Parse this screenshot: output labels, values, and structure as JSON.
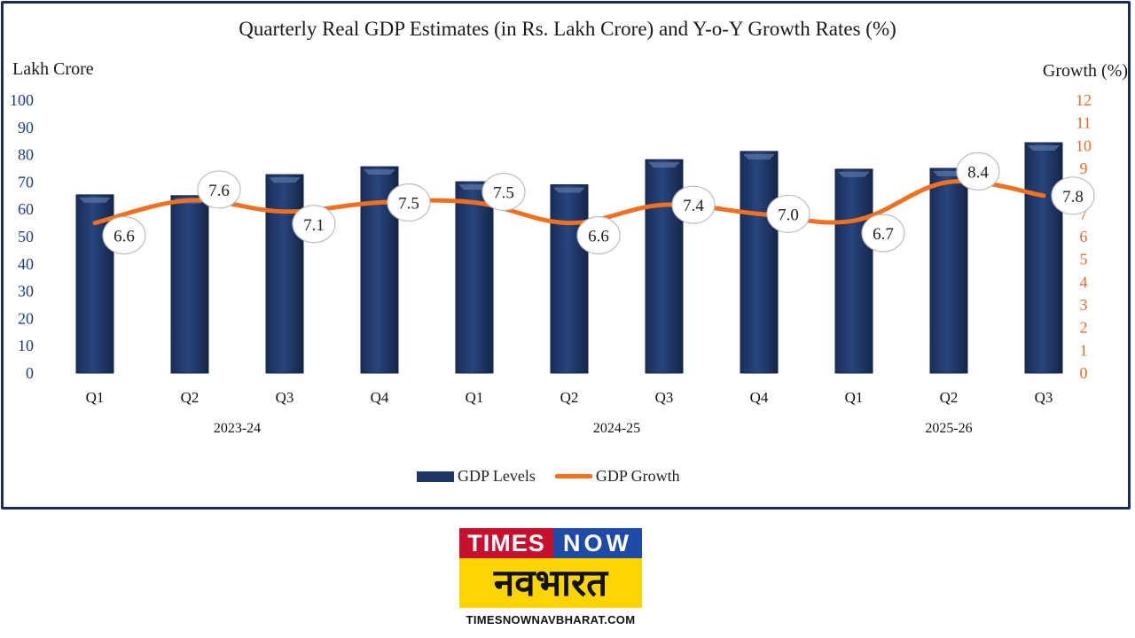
{
  "chart_data": {
    "type": "bar",
    "title": "Quarterly Real GDP Estimates (in Rs. Lakh Crore) and Y-o-Y Growth Rates (%)",
    "ylabel": "Lakh Crore",
    "y2label": "Growth (%)",
    "xlabel": "",
    "ylim": [
      0,
      100
    ],
    "y2lim": [
      0,
      12
    ],
    "yticks": [
      "0",
      "10",
      "20",
      "30",
      "40",
      "50",
      "60",
      "70",
      "80",
      "90",
      "100"
    ],
    "y2ticks": [
      "0",
      "1",
      "2",
      "3",
      "4",
      "5",
      "6",
      "7",
      "8",
      "9",
      "10",
      "11",
      "12"
    ],
    "categories": [
      "Q1",
      "Q2",
      "Q3",
      "Q4",
      "Q1",
      "Q2",
      "Q3",
      "Q4",
      "Q1",
      "Q2",
      "Q3"
    ],
    "groups": [
      {
        "label": "2023-24",
        "span": [
          0,
          3
        ]
      },
      {
        "label": "2024-25",
        "span": [
          4,
          7
        ]
      },
      {
        "label": "2025-26",
        "span": [
          8,
          10
        ]
      }
    ],
    "series": [
      {
        "name": "GDP Levels",
        "type": "bar",
        "axis": "left",
        "color": "#1f3565",
        "values": [
          65.3,
          65.0,
          72.7,
          75.6,
          70.1,
          69.0,
          78.2,
          81.2,
          74.7,
          75.0,
          84.4
        ]
      },
      {
        "name": "GDP Growth",
        "type": "line",
        "axis": "right",
        "color": "#f07020",
        "values": [
          6.6,
          7.6,
          7.1,
          7.5,
          7.5,
          6.6,
          7.4,
          7.0,
          6.7,
          8.4,
          7.8
        ],
        "labels": [
          "6.6",
          "7.6",
          "7.1",
          "7.5",
          "7.5",
          "6.6",
          "7.4",
          "7.0",
          "6.7",
          "8.4",
          "7.8"
        ]
      }
    ],
    "legend": {
      "position": "bottom",
      "items": [
        "GDP Levels",
        "GDP Growth"
      ]
    },
    "grid": false
  },
  "branding": {
    "logo_times": "TIMES",
    "logo_now": "NOW",
    "logo_hindi": "नवभारत",
    "logo_url": "TIMESNOWNAVBHARAT.COM"
  }
}
